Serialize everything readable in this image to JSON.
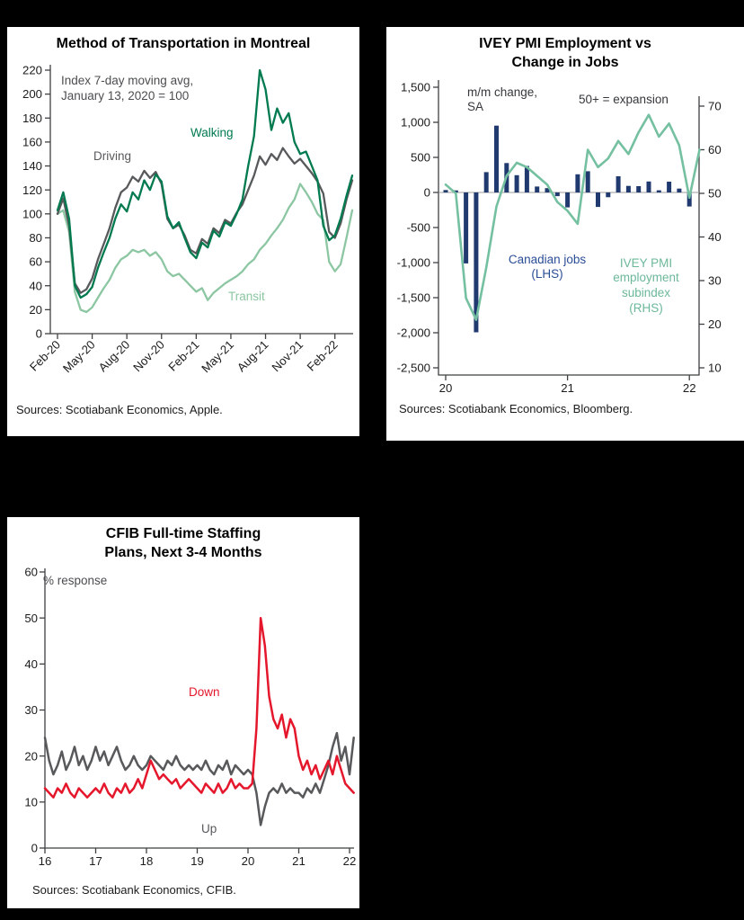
{
  "page": {
    "background": "#000000",
    "panel_background": "#ffffff"
  },
  "chart_data": [
    {
      "type": "line",
      "title": "Method of Transportation in Montreal",
      "note_lines": [
        "Index 7-day moving avg,",
        "January 13, 2020 = 100"
      ],
      "ylim": [
        0,
        220
      ],
      "y_tick_labels": [
        "0",
        "20",
        "40",
        "60",
        "80",
        "100",
        "120",
        "140",
        "160",
        "180",
        "200",
        "220"
      ],
      "x_tick_labels": [
        "Feb-20",
        "May-20",
        "Aug-20",
        "Nov-20",
        "Feb-21",
        "May-21",
        "Aug-21",
        "Nov-21",
        "Feb-22"
      ],
      "x_tick_indices": [
        0,
        6,
        12,
        18,
        24,
        30,
        36,
        42,
        48
      ],
      "x_unit": "half-months from Feb-2020",
      "series": [
        {
          "name": "Transit",
          "color": "#8cc6a2",
          "values": [
            100,
            103,
            85,
            35,
            20,
            18,
            22,
            30,
            38,
            45,
            55,
            62,
            65,
            70,
            68,
            70,
            65,
            68,
            62,
            52,
            48,
            50,
            45,
            40,
            35,
            38,
            28,
            34,
            38,
            42,
            45,
            48,
            52,
            58,
            62,
            70,
            75,
            82,
            88,
            95,
            105,
            112,
            125,
            118,
            110,
            100,
            95,
            60,
            52,
            58,
            80,
            103
          ]
        },
        {
          "name": "Driving",
          "color": "#58595b",
          "values": [
            100,
            113,
            90,
            42,
            34,
            37,
            46,
            62,
            75,
            88,
            105,
            118,
            122,
            131,
            127,
            136,
            130,
            135,
            125,
            96,
            88,
            91,
            82,
            70,
            67,
            79,
            75,
            88,
            84,
            95,
            92,
            101,
            108,
            120,
            132,
            148,
            141,
            150,
            145,
            155,
            148,
            142,
            146,
            140,
            134,
            127,
            117,
            85,
            80,
            92,
            112,
            128
          ]
        },
        {
          "name": "Walking",
          "color": "#007a4e",
          "values": [
            103,
            118,
            96,
            40,
            30,
            33,
            39,
            55,
            68,
            80,
            96,
            108,
            102,
            118,
            112,
            128,
            120,
            133,
            127,
            98,
            88,
            93,
            80,
            68,
            63,
            76,
            72,
            86,
            81,
            93,
            90,
            100,
            112,
            140,
            165,
            220,
            204,
            170,
            188,
            176,
            184,
            160,
            150,
            152,
            140,
            128,
            90,
            78,
            82,
            96,
            115,
            132
          ]
        }
      ],
      "source": "Sources: Scotiabank Economics, Apple."
    },
    {
      "type": "combo-bar-line",
      "title_lines": [
        "IVEY PMI Employment vs",
        "Change in Jobs"
      ],
      "left_axis_note_lines": [
        "m/m change,",
        "SA"
      ],
      "right_axis_note": "50+ = expansion",
      "left_ylim": [
        -2500,
        1500
      ],
      "left_tick_labels": [
        "1,500",
        "1,000",
        "500",
        "0",
        "-500",
        "-1,000",
        "-1,500",
        "-2,000",
        "-2,500"
      ],
      "right_ylim": [
        10,
        70
      ],
      "right_tick_labels": [
        "70",
        "60",
        "50",
        "40",
        "30",
        "20",
        "10"
      ],
      "x_tick_labels": [
        "20",
        "21",
        "22"
      ],
      "x_tick_indices": [
        0,
        12,
        24
      ],
      "x_unit": "months from Jan-2020",
      "bars": {
        "name": "Canadian jobs (LHS)",
        "color": "#203a70",
        "label_color": "#2a4e96",
        "values": [
          35,
          30,
          -1011,
          -1994,
          290,
          953,
          419,
          246,
          378,
          84,
          62,
          -53,
          -213,
          259,
          303,
          -207,
          -68,
          231,
          94,
          90,
          157,
          31,
          154,
          55,
          -200
        ]
      },
      "line": {
        "name": "IVEY PMI employment subindex (RHS)",
        "color": "#74c0a0",
        "values": [
          52,
          50,
          26,
          21,
          33,
          47,
          54,
          57,
          56,
          54,
          52,
          48,
          46,
          43,
          60,
          56,
          58,
          62,
          59,
          64,
          68,
          63,
          66,
          61,
          49,
          60
        ]
      },
      "source": "Sources: Scotiabank Economics, Bloomberg."
    },
    {
      "type": "line",
      "title_lines": [
        "CFIB Full-time Staffing",
        "Plans, Next 3-4 Months"
      ],
      "note": "% response",
      "ylim": [
        0,
        60
      ],
      "y_tick_labels": [
        "0",
        "10",
        "20",
        "30",
        "40",
        "50",
        "60"
      ],
      "x_tick_labels": [
        "16",
        "17",
        "18",
        "19",
        "20",
        "21",
        "22"
      ],
      "x_tick_indices": [
        0,
        12,
        24,
        36,
        48,
        60,
        72
      ],
      "x_unit": "months from Jan-2016",
      "series": [
        {
          "name": "Up",
          "color": "#58595b",
          "values": [
            24,
            19,
            16,
            18,
            21,
            17,
            19,
            22,
            18,
            20,
            17,
            19,
            22,
            19,
            21,
            18,
            20,
            22,
            19,
            17,
            18,
            20,
            18,
            17,
            18,
            20,
            19,
            18,
            17,
            19,
            18,
            20,
            18,
            17,
            18,
            17,
            18,
            17,
            19,
            17,
            16,
            18,
            17,
            19,
            16,
            18,
            17,
            16,
            17,
            16,
            12,
            5,
            9,
            12,
            13,
            12,
            14,
            12,
            13,
            12,
            12,
            11,
            13,
            12,
            14,
            12,
            15,
            18,
            22,
            25,
            19,
            22,
            16,
            24
          ]
        },
        {
          "name": "Down",
          "color": "#e5172c",
          "values": [
            13,
            12,
            11,
            13,
            12,
            14,
            12,
            11,
            13,
            12,
            11,
            12,
            13,
            12,
            14,
            12,
            11,
            13,
            12,
            14,
            12,
            13,
            15,
            13,
            16,
            19,
            17,
            15,
            16,
            15,
            14,
            15,
            13,
            14,
            15,
            14,
            13,
            12,
            14,
            13,
            12,
            14,
            12,
            13,
            15,
            13,
            14,
            13,
            13,
            14,
            26,
            50,
            44,
            33,
            28,
            26,
            29,
            24,
            28,
            26,
            20,
            17,
            19,
            16,
            18,
            15,
            17,
            19,
            16,
            20,
            17,
            14,
            13,
            12
          ]
        }
      ],
      "source": "Sources: Scotiabank Economics, CFIB."
    }
  ]
}
